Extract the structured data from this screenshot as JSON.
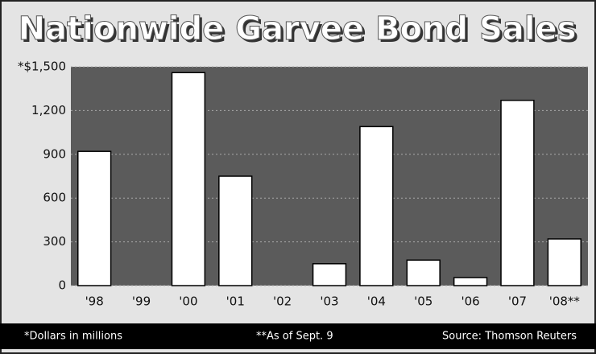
{
  "chart_data": {
    "type": "bar",
    "title": "Nationwide Garvee Bond Sales",
    "categories": [
      "'98",
      "'99",
      "'00",
      "'01",
      "'02",
      "'03",
      "'04",
      "'05",
      "'06",
      "'07",
      "'08**"
    ],
    "values": [
      920,
      0,
      1460,
      750,
      0,
      150,
      1090,
      175,
      55,
      1270,
      320
    ],
    "color": "#ffffff",
    "ylim": [
      0,
      1500
    ],
    "yticks": [
      0,
      300,
      600,
      900,
      {
        "value": 1200,
        "label": "1,200"
      },
      {
        "value": 1500,
        "label": "*$1,500"
      }
    ],
    "grid": true,
    "notes": [
      "*Dollars in millions",
      "**As of Sept. 9",
      "Source: Thomson Reuters"
    ]
  }
}
